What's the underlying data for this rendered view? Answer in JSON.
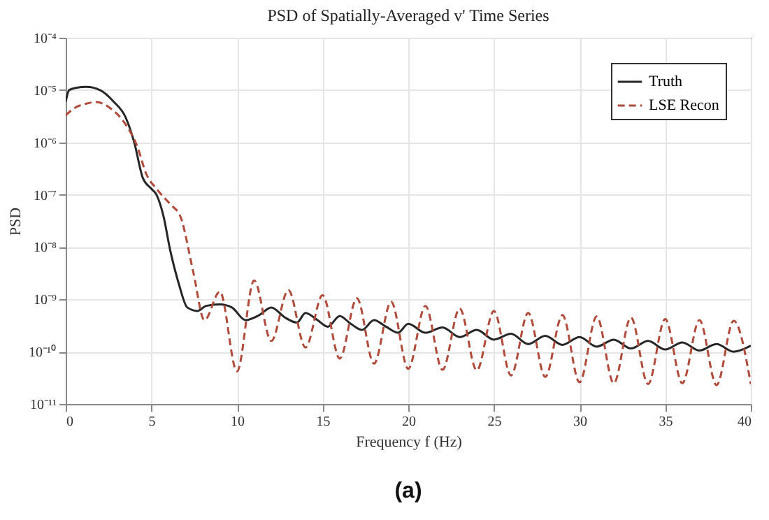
{
  "chart_data": {
    "type": "line",
    "title": "PSD of Spatially-Averaged v' Time Series",
    "xlabel": "Frequency f (Hz)",
    "ylabel": "PSD",
    "annotations": [
      "(a)"
    ],
    "log": "y",
    "grid": true,
    "legend": "top right",
    "xlim": [
      0,
      40
    ],
    "xticks": [
      0,
      5,
      10,
      15,
      20,
      25,
      30,
      35,
      40
    ],
    "ylim": [
      1e-11,
      0.0001
    ],
    "yticks": [
      {
        "value": 1e-11,
        "label": "10⁻¹¹"
      },
      {
        "value": 1e-10,
        "label": "10⁻¹⁰"
      },
      {
        "value": 1e-09,
        "label": "10⁻⁹"
      },
      {
        "value": 1e-08,
        "label": "10⁻⁸"
      },
      {
        "value": 1e-07,
        "label": "10⁻⁷"
      },
      {
        "value": 1e-06,
        "label": "10⁻⁶"
      },
      {
        "value": 1e-05,
        "label": "10⁻⁵"
      },
      {
        "value": 0.0001,
        "label": "10⁻⁴"
      }
    ],
    "series": [
      {
        "name": "Truth",
        "color": "#262626",
        "line_style": "solid",
        "x": [
          0,
          0.2,
          0.6,
          1.2,
          2,
          2.8,
          3.5,
          4,
          4.5,
          5,
          5.3,
          5.7,
          6.1,
          6.6,
          7.1,
          7.7,
          8.2,
          9,
          9.7,
          10.5,
          11.3,
          12,
          12.8,
          13.5,
          14,
          14.7,
          15.3,
          16,
          16.6,
          17.3,
          18,
          18.7,
          19.4,
          20,
          21,
          22,
          23,
          24,
          25,
          26,
          27,
          28,
          29,
          30,
          31,
          32,
          33,
          34,
          35,
          36,
          37,
          38,
          39,
          40
        ],
        "values": [
          6e-06,
          1e-05,
          1.1e-05,
          1.15e-05,
          1e-05,
          6e-06,
          3e-06,
          1e-06,
          2.1e-07,
          1.3e-07,
          1e-07,
          4e-08,
          8.7e-09,
          2e-09,
          7e-10,
          6e-10,
          7.5e-10,
          8e-10,
          7e-10,
          4e-10,
          5e-10,
          7e-10,
          4.5e-10,
          3.6e-10,
          5.5e-10,
          4e-10,
          3e-10,
          4.8e-10,
          3.5e-10,
          2.6e-10,
          4e-10,
          3e-10,
          2.3e-10,
          3.4e-10,
          2.3e-10,
          2.9e-10,
          1.9e-10,
          2.6e-10,
          1.7e-10,
          2.2e-10,
          1.4e-10,
          2e-10,
          1.35e-10,
          1.9e-10,
          1.25e-10,
          1.7e-10,
          1.15e-10,
          1.6e-10,
          1.1e-10,
          1.5e-10,
          1.05e-10,
          1.4e-10,
          1e-10,
          1.3e-10
        ]
      },
      {
        "name": "LSE Recon",
        "color": "#b04a3a",
        "line_style": "dashed",
        "x": [
          0,
          0.5,
          1.2,
          1.8,
          2.6,
          3.5,
          4.2,
          4.7,
          5.3,
          6.1,
          6.7,
          7.45,
          8.1,
          9,
          10,
          11,
          12,
          13,
          14,
          15,
          16,
          17,
          18,
          19,
          20,
          21,
          22,
          23,
          24,
          25,
          26,
          27,
          28,
          29,
          30,
          31,
          32,
          33,
          34,
          35,
          36,
          37,
          38,
          39,
          40
        ],
        "values": [
          3.3e-06,
          4.5e-06,
          5.5e-06,
          5.9e-06,
          4.5e-06,
          2.2e-06,
          8e-07,
          2.5e-07,
          1.3e-07,
          6.6e-08,
          3.8e-08,
          3.3e-09,
          4e-10,
          1.4e-09,
          4.2e-11,
          2.3e-09,
          1.6e-10,
          1.5e-09,
          1.2e-10,
          1.2e-09,
          7.4e-11,
          1.05e-09,
          5.9e-11,
          9e-10,
          4.7e-11,
          7.5e-10,
          4.5e-11,
          6.7e-10,
          4.4e-11,
          6e-10,
          3.5e-11,
          5.5e-10,
          3.3e-11,
          5e-10,
          2.6e-11,
          4.7e-10,
          2.5e-11,
          4.5e-10,
          2.4e-11,
          4.2e-10,
          2.5e-11,
          4e-10,
          2.3e-11,
          3.9e-10,
          2.4e-11
        ]
      }
    ]
  }
}
